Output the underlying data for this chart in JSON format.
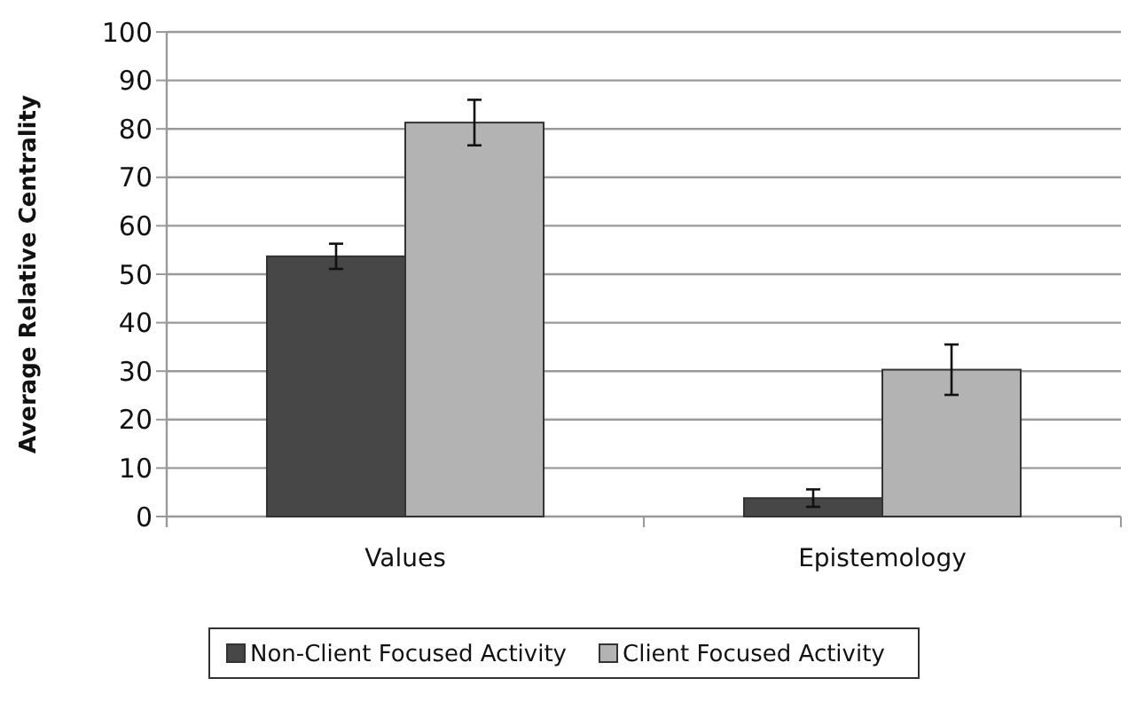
{
  "chart_data": {
    "type": "bar",
    "ylabel": "Average Relative Centrality",
    "categories": [
      "Values",
      "Epistemology"
    ],
    "series": [
      {
        "name": "Non-Client Focused Activity",
        "color": "#474747",
        "values": [
          53.7,
          3.8
        ],
        "errors": [
          2.6,
          1.8
        ]
      },
      {
        "name": "Client Focused Activity",
        "color": "#b3b3b3",
        "values": [
          81.3,
          30.3
        ],
        "errors": [
          4.7,
          5.2
        ]
      }
    ],
    "ylim": [
      0,
      100
    ],
    "yticks": [
      0,
      10,
      20,
      30,
      40,
      50,
      60,
      70,
      80,
      90,
      100
    ],
    "grid": "y",
    "legend": "bottom"
  }
}
